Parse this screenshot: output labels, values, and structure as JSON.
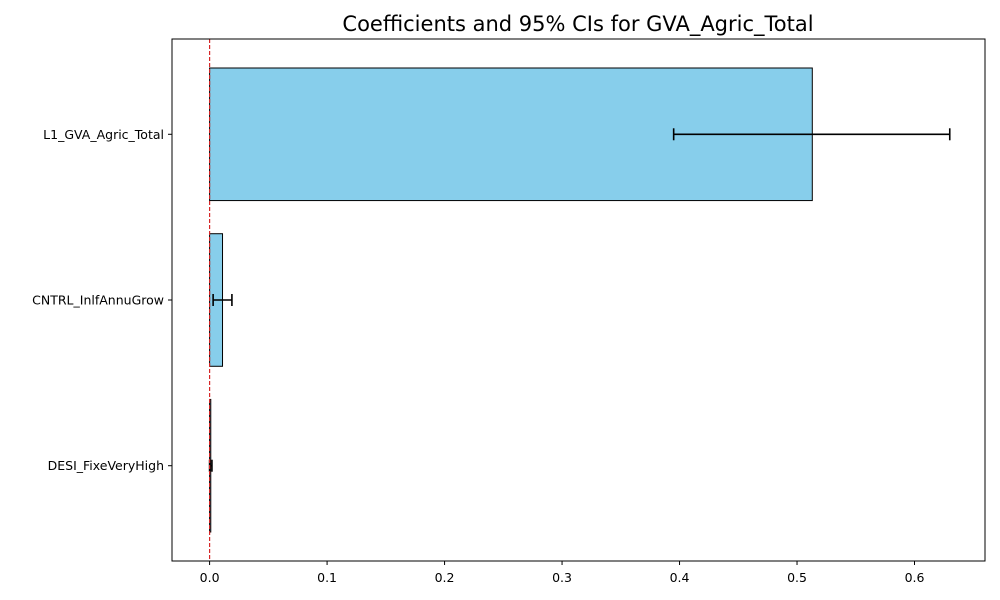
{
  "chart_data": {
    "type": "bar",
    "orientation": "horizontal",
    "title": "Coefficients and 95% CIs for GVA_Agric_Total",
    "xlabel": "",
    "ylabel": "",
    "xlim": [
      -0.032,
      0.66
    ],
    "x_ticks": [
      0.0,
      0.1,
      0.2,
      0.3,
      0.4,
      0.5,
      0.6
    ],
    "x_tick_labels": [
      "0.0",
      "0.1",
      "0.2",
      "0.3",
      "0.4",
      "0.5",
      "0.6"
    ],
    "categories": [
      "L1_GVA_Agric_Total",
      "CNTRL_InlfAnnuGrow",
      "DESI_FixeVeryHigh"
    ],
    "values": [
      0.513,
      0.011,
      0.001
    ],
    "ci_lower": [
      0.395,
      0.003,
      0.0
    ],
    "ci_upper": [
      0.63,
      0.019,
      0.002
    ],
    "reference_line_x": 0,
    "grid": false,
    "colors": {
      "bar_fill": "#87ceeb",
      "bar_edge": "#000000",
      "error_bar": "#000000",
      "reference_line": "#d62728",
      "axis": "#000000"
    }
  }
}
